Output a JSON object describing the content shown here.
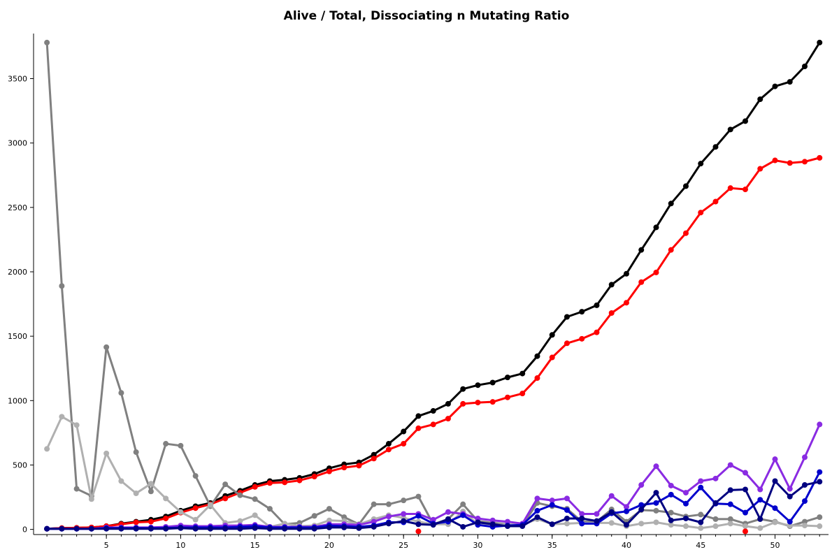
{
  "chart_data": {
    "type": "line",
    "title": "Alive / Total, Dissociating n Mutating Ratio",
    "xlabel": "",
    "ylabel": "",
    "xlim": [
      0.1,
      53.6
    ],
    "ylim": [
      -40,
      3850
    ],
    "x_ticks": [
      5,
      10,
      15,
      20,
      25,
      30,
      35,
      40,
      45,
      50
    ],
    "y_ticks": [
      0,
      500,
      1000,
      1500,
      2000,
      2500,
      3000,
      3500
    ],
    "grid": false,
    "legend": "none",
    "x": [
      1,
      2,
      3,
      4,
      5,
      6,
      7,
      8,
      9,
      10,
      11,
      12,
      13,
      14,
      15,
      16,
      17,
      18,
      19,
      20,
      21,
      22,
      23,
      24,
      25,
      26,
      27,
      28,
      29,
      30,
      31,
      32,
      33,
      34,
      35,
      36,
      37,
      38,
      39,
      40,
      41,
      42,
      43,
      44,
      45,
      46,
      47,
      48,
      49,
      50,
      51,
      52,
      53
    ],
    "series": [
      {
        "color": "#000000",
        "values": [
          5,
          10,
          12,
          15,
          25,
          45,
          60,
          75,
          100,
          145,
          180,
          205,
          260,
          300,
          345,
          375,
          385,
          400,
          430,
          475,
          505,
          520,
          580,
          665,
          760,
          880,
          920,
          975,
          1090,
          1120,
          1140,
          1180,
          1210,
          1345,
          1510,
          1650,
          1690,
          1740,
          1900,
          1985,
          2170,
          2345,
          2530,
          2665,
          2840,
          2970,
          3105,
          3170,
          3340,
          3440,
          3475,
          3595,
          3780
        ]
      },
      {
        "color": "#ff0000",
        "values": [
          5,
          10,
          12,
          15,
          25,
          40,
          55,
          60,
          85,
          130,
          165,
          195,
          240,
          285,
          330,
          360,
          365,
          380,
          410,
          450,
          480,
          495,
          550,
          620,
          665,
          785,
          815,
          860,
          975,
          985,
          990,
          1025,
          1055,
          1175,
          1335,
          1445,
          1480,
          1530,
          1680,
          1760,
          1920,
          1995,
          2170,
          2300,
          2460,
          2545,
          2650,
          2640,
          2800,
          2865,
          2845,
          2855,
          2885
        ]
      },
      {
        "color": "#808080",
        "values": [
          3780,
          1890,
          315,
          260,
          1415,
          1060,
          600,
          295,
          665,
          650,
          415,
          180,
          350,
          265,
          235,
          160,
          40,
          50,
          105,
          160,
          95,
          40,
          195,
          195,
          225,
          255,
          40,
          80,
          195,
          65,
          50,
          40,
          30,
          205,
          180,
          160,
          60,
          60,
          155,
          60,
          150,
          145,
          130,
          100,
          115,
          80,
          80,
          45,
          80,
          60,
          25,
          60,
          95
        ]
      },
      {
        "color": "#b0b0b0",
        "values": [
          625,
          875,
          810,
          235,
          590,
          375,
          280,
          355,
          240,
          135,
          75,
          190,
          50,
          65,
          110,
          20,
          45,
          25,
          30,
          70,
          65,
          40,
          80,
          110,
          90,
          60,
          40,
          40,
          140,
          40,
          35,
          40,
          35,
          80,
          40,
          45,
          50,
          50,
          50,
          25,
          45,
          55,
          35,
          25,
          10,
          25,
          45,
          25,
          10,
          55,
          30,
          30,
          25
        ]
      },
      {
        "color": "#8a2be2",
        "values": [
          5,
          5,
          5,
          5,
          15,
          15,
          15,
          15,
          20,
          30,
          25,
          25,
          30,
          30,
          35,
          20,
          20,
          20,
          20,
          40,
          40,
          35,
          60,
          100,
          120,
          120,
          75,
          135,
          120,
          85,
          70,
          60,
          45,
          240,
          225,
          240,
          120,
          120,
          260,
          175,
          345,
          490,
          340,
          285,
          375,
          395,
          500,
          440,
          310,
          545,
          315,
          560,
          815
        ]
      },
      {
        "color": "#0000cc",
        "values": [
          5,
          5,
          5,
          5,
          10,
          10,
          10,
          10,
          10,
          15,
          15,
          15,
          15,
          20,
          25,
          15,
          15,
          15,
          15,
          30,
          25,
          20,
          30,
          55,
          55,
          105,
          45,
          60,
          110,
          35,
          20,
          30,
          35,
          145,
          190,
          150,
          45,
          45,
          125,
          140,
          190,
          205,
          270,
          200,
          325,
          200,
          195,
          130,
          230,
          165,
          60,
          220,
          445
        ]
      },
      {
        "color": "#000080",
        "values": [
          5,
          5,
          5,
          5,
          5,
          5,
          5,
          5,
          5,
          10,
          5,
          5,
          5,
          5,
          10,
          5,
          5,
          5,
          5,
          15,
          15,
          10,
          20,
          45,
          65,
          40,
          35,
          80,
          20,
          55,
          40,
          25,
          25,
          95,
          40,
          85,
          85,
          65,
          135,
          35,
          155,
          285,
          70,
          85,
          55,
          205,
          305,
          310,
          80,
          375,
          255,
          345,
          370
        ]
      }
    ],
    "isolated_points": [
      {
        "x": 26,
        "y": -15,
        "color": "#ff0000"
      },
      {
        "x": 48,
        "y": -15,
        "color": "#ff0000"
      }
    ]
  }
}
